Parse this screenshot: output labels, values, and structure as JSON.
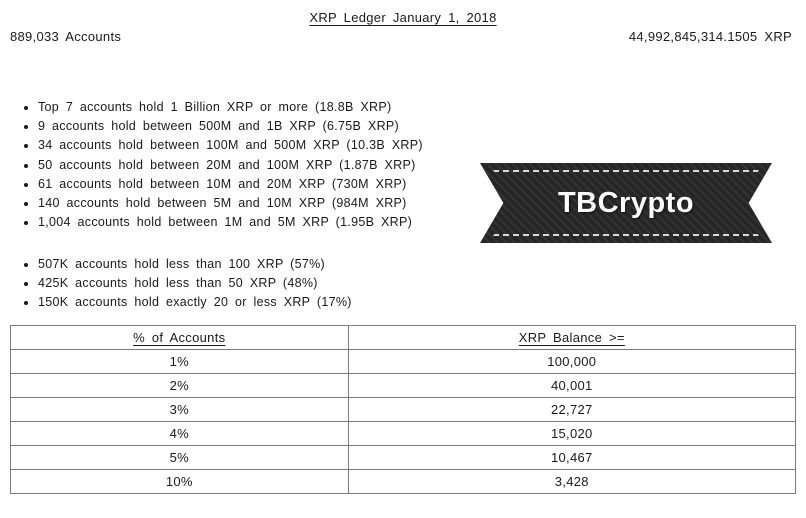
{
  "header": {
    "title": "XRP Ledger January 1, 2018",
    "accounts": "889,033 Accounts",
    "total_xrp": "44,992,845,314.1505 XRP"
  },
  "bullets_top": [
    "Top 7 accounts hold 1 Billion XRP or more (18.8B XRP)",
    "9 accounts hold between 500M and 1B XRP (6.75B XRP)",
    "34 accounts hold between 100M and 500M XRP (10.3B XRP)",
    "50 accounts hold between 20M and 100M XRP (1.87B XRP)",
    "61 accounts hold between 10M and 20M XRP (730M XRP)",
    "140 accounts hold between 5M and 10M XRP (984M XRP)",
    "1,004 accounts hold between 1M and 5M XRP (1.95B XRP)"
  ],
  "bullets_bottom": [
    "507K accounts hold less than 100 XRP (57%)",
    "425K accounts hold less than 50 XRP (48%)",
    "150K accounts hold exactly 20 or less XRP (17%)"
  ],
  "badge": {
    "label": "TBCrypto"
  },
  "table": {
    "headers": [
      "% of Accounts",
      "XRP Balance >="
    ],
    "rows": [
      [
        "1%",
        "100,000"
      ],
      [
        "2%",
        "40,001"
      ],
      [
        "3%",
        "22,727"
      ],
      [
        "4%",
        "15,020"
      ],
      [
        "5%",
        "10,467"
      ],
      [
        "10%",
        "3,428"
      ]
    ]
  }
}
